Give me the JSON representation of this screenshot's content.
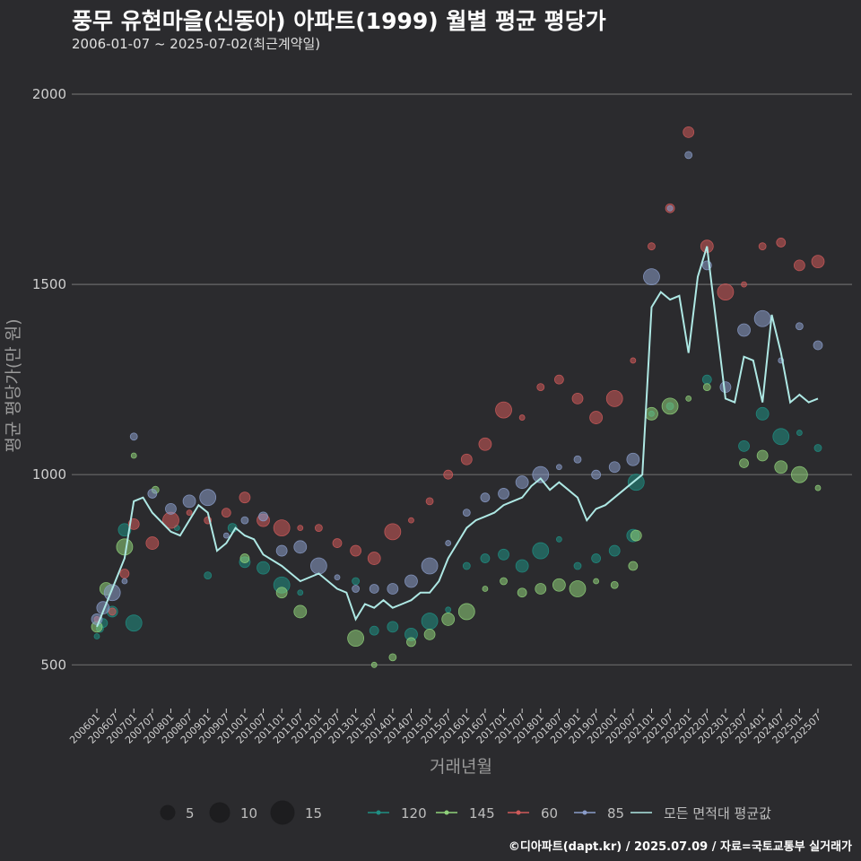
{
  "header": {
    "title": "풍무 유현마을(신동아) 아파트(1999) 월별 평균 평당가",
    "subtitle": "2006-01-07 ~ 2025-07-02(최근계약일)"
  },
  "footer": {
    "credit": "©디아파트(dapt.kr) / 2025.07.09 / 자료=국토교통부 실거래가"
  },
  "chart_data": {
    "type": "scatter",
    "title": "풍무 유현마을(신동아) 아파트(1999) 월별 평균 평당가",
    "subtitle": "2006-01-07 ~ 2025-07-02(최근계약일)",
    "xlabel": "거래년월",
    "ylabel": "평균 평당가(만 원)",
    "ylim": [
      390,
      2040
    ],
    "yticks": [
      500,
      1000,
      1500,
      2000
    ],
    "xticks": [
      "200601",
      "200607",
      "200701",
      "200707",
      "200801",
      "200807",
      "200901",
      "200907",
      "201001",
      "201007",
      "201101",
      "201107",
      "201201",
      "201207",
      "201301",
      "201307",
      "201401",
      "201407",
      "201501",
      "201507",
      "201601",
      "201607",
      "201701",
      "201707",
      "201801",
      "201807",
      "201901",
      "201907",
      "202001",
      "202007",
      "202101",
      "202107",
      "202201",
      "202207",
      "202301",
      "202307",
      "202401",
      "202407",
      "202501",
      "202507"
    ],
    "grid": true,
    "legend_position": "bottom",
    "size_legend": [
      5,
      10,
      15
    ],
    "colors": {
      "120": "#1f8f84",
      "145": "#8fd17a",
      "60": "#cf5a5a",
      "85": "#8a9cc9",
      "avg": "#aee8e4"
    },
    "series": [
      {
        "name": "120",
        "points": [
          [
            "200601",
            575
          ],
          [
            "200602",
            595
          ],
          [
            "200603",
            610
          ],
          [
            "200606",
            640
          ],
          [
            "200610",
            855
          ],
          [
            "200701",
            610
          ],
          [
            "200803",
            860
          ],
          [
            "200901",
            735
          ],
          [
            "200909",
            860
          ],
          [
            "201001",
            770
          ],
          [
            "201007",
            755
          ],
          [
            "201101",
            710
          ],
          [
            "201107",
            690
          ],
          [
            "201301",
            720
          ],
          [
            "201307",
            590
          ],
          [
            "201401",
            600
          ],
          [
            "201407",
            580
          ],
          [
            "201501",
            615
          ],
          [
            "201507",
            645
          ],
          [
            "201601",
            760
          ],
          [
            "201607",
            780
          ],
          [
            "201701",
            790
          ],
          [
            "201707",
            760
          ],
          [
            "201801",
            800
          ],
          [
            "201807",
            830
          ],
          [
            "201901",
            760
          ],
          [
            "201907",
            780
          ],
          [
            "202001",
            800
          ],
          [
            "202007",
            840
          ],
          [
            "202008",
            980
          ],
          [
            "202101",
            1160
          ],
          [
            "202107",
            1180
          ],
          [
            "202207",
            1250
          ],
          [
            "202307",
            1075
          ],
          [
            "202401",
            1160
          ],
          [
            "202407",
            1100
          ],
          [
            "202501",
            1110
          ],
          [
            "202507",
            1070
          ]
        ]
      },
      {
        "name": "145",
        "points": [
          [
            "200601",
            600
          ],
          [
            "200604",
            700
          ],
          [
            "200610",
            810
          ],
          [
            "200701",
            1050
          ],
          [
            "200708",
            960
          ],
          [
            "201001",
            780
          ],
          [
            "201101",
            690
          ],
          [
            "201107",
            640
          ],
          [
            "201301",
            570
          ],
          [
            "201307",
            500
          ],
          [
            "201401",
            520
          ],
          [
            "201407",
            560
          ],
          [
            "201501",
            580
          ],
          [
            "201507",
            620
          ],
          [
            "201601",
            640
          ],
          [
            "201607",
            700
          ],
          [
            "201701",
            720
          ],
          [
            "201707",
            690
          ],
          [
            "201801",
            700
          ],
          [
            "201807",
            710
          ],
          [
            "201901",
            700
          ],
          [
            "201907",
            720
          ],
          [
            "202001",
            710
          ],
          [
            "202007",
            760
          ],
          [
            "202008",
            840
          ],
          [
            "202101",
            1160
          ],
          [
            "202107",
            1180
          ],
          [
            "202201",
            1200
          ],
          [
            "202207",
            1230
          ],
          [
            "202307",
            1030
          ],
          [
            "202401",
            1050
          ],
          [
            "202407",
            1020
          ],
          [
            "202501",
            1000
          ],
          [
            "202507",
            965
          ]
        ]
      },
      {
        "name": "60",
        "points": [
          [
            "200601",
            620
          ],
          [
            "200606",
            640
          ],
          [
            "200610",
            740
          ],
          [
            "200701",
            870
          ],
          [
            "200707",
            820
          ],
          [
            "200801",
            880
          ],
          [
            "200807",
            900
          ],
          [
            "200901",
            880
          ],
          [
            "200907",
            900
          ],
          [
            "201001",
            940
          ],
          [
            "201007",
            880
          ],
          [
            "201101",
            860
          ],
          [
            "201107",
            860
          ],
          [
            "201201",
            860
          ],
          [
            "201207",
            820
          ],
          [
            "201301",
            800
          ],
          [
            "201307",
            780
          ],
          [
            "201401",
            850
          ],
          [
            "201407",
            880
          ],
          [
            "201501",
            930
          ],
          [
            "201507",
            1000
          ],
          [
            "201601",
            1040
          ],
          [
            "201607",
            1080
          ],
          [
            "201701",
            1170
          ],
          [
            "201707",
            1150
          ],
          [
            "201801",
            1230
          ],
          [
            "201807",
            1250
          ],
          [
            "201901",
            1200
          ],
          [
            "201907",
            1150
          ],
          [
            "202001",
            1200
          ],
          [
            "202007",
            1300
          ],
          [
            "202101",
            1600
          ],
          [
            "202107",
            1700
          ],
          [
            "202201",
            1900
          ],
          [
            "202207",
            1600
          ],
          [
            "202301",
            1480
          ],
          [
            "202307",
            1500
          ],
          [
            "202401",
            1600
          ],
          [
            "202407",
            1610
          ],
          [
            "202501",
            1550
          ],
          [
            "202507",
            1560
          ]
        ]
      },
      {
        "name": "85",
        "points": [
          [
            "200601",
            620
          ],
          [
            "200603",
            650
          ],
          [
            "200606",
            690
          ],
          [
            "200610",
            720
          ],
          [
            "200701",
            1100
          ],
          [
            "200707",
            950
          ],
          [
            "200801",
            910
          ],
          [
            "200807",
            930
          ],
          [
            "200901",
            940
          ],
          [
            "200907",
            840
          ],
          [
            "201001",
            880
          ],
          [
            "201007",
            890
          ],
          [
            "201101",
            800
          ],
          [
            "201107",
            810
          ],
          [
            "201201",
            760
          ],
          [
            "201207",
            730
          ],
          [
            "201301",
            700
          ],
          [
            "201307",
            700
          ],
          [
            "201401",
            700
          ],
          [
            "201407",
            720
          ],
          [
            "201501",
            760
          ],
          [
            "201507",
            820
          ],
          [
            "201601",
            900
          ],
          [
            "201607",
            940
          ],
          [
            "201701",
            950
          ],
          [
            "201707",
            980
          ],
          [
            "201801",
            1000
          ],
          [
            "201807",
            1020
          ],
          [
            "201901",
            1040
          ],
          [
            "201907",
            1000
          ],
          [
            "202001",
            1020
          ],
          [
            "202007",
            1040
          ],
          [
            "202101",
            1520
          ],
          [
            "202107",
            1700
          ],
          [
            "202201",
            1840
          ],
          [
            "202207",
            1550
          ],
          [
            "202301",
            1230
          ],
          [
            "202307",
            1380
          ],
          [
            "202401",
            1410
          ],
          [
            "202407",
            1300
          ],
          [
            "202501",
            1390
          ],
          [
            "202507",
            1340
          ]
        ]
      },
      {
        "name": "모든 면적대 평균값",
        "points": [
          [
            "200601",
            600
          ],
          [
            "200603",
            640
          ],
          [
            "200606",
            700
          ],
          [
            "200610",
            780
          ],
          [
            "200701",
            930
          ],
          [
            "200704",
            940
          ],
          [
            "200707",
            900
          ],
          [
            "200801",
            850
          ],
          [
            "200804",
            840
          ],
          [
            "200807",
            880
          ],
          [
            "200810",
            920
          ],
          [
            "200901",
            900
          ],
          [
            "200904",
            800
          ],
          [
            "200907",
            820
          ],
          [
            "200910",
            860
          ],
          [
            "201001",
            840
          ],
          [
            "201004",
            830
          ],
          [
            "201007",
            790
          ],
          [
            "201101",
            760
          ],
          [
            "201104",
            740
          ],
          [
            "201107",
            720
          ],
          [
            "201201",
            740
          ],
          [
            "201204",
            720
          ],
          [
            "201207",
            700
          ],
          [
            "201210",
            690
          ],
          [
            "201301",
            620
          ],
          [
            "201304",
            660
          ],
          [
            "201307",
            650
          ],
          [
            "201310",
            670
          ],
          [
            "201401",
            650
          ],
          [
            "201404",
            660
          ],
          [
            "201407",
            670
          ],
          [
            "201410",
            690
          ],
          [
            "201501",
            690
          ],
          [
            "201504",
            720
          ],
          [
            "201507",
            780
          ],
          [
            "201510",
            820
          ],
          [
            "201601",
            860
          ],
          [
            "201604",
            880
          ],
          [
            "201607",
            890
          ],
          [
            "201610",
            900
          ],
          [
            "201701",
            920
          ],
          [
            "201704",
            930
          ],
          [
            "201707",
            940
          ],
          [
            "201710",
            970
          ],
          [
            "201801",
            990
          ],
          [
            "201804",
            960
          ],
          [
            "201807",
            980
          ],
          [
            "201810",
            960
          ],
          [
            "201901",
            940
          ],
          [
            "201904",
            880
          ],
          [
            "201907",
            910
          ],
          [
            "201910",
            920
          ],
          [
            "202001",
            940
          ],
          [
            "202004",
            960
          ],
          [
            "202007",
            980
          ],
          [
            "202010",
            1000
          ],
          [
            "202101",
            1440
          ],
          [
            "202104",
            1480
          ],
          [
            "202107",
            1460
          ],
          [
            "202110",
            1470
          ],
          [
            "202201",
            1320
          ],
          [
            "202204",
            1520
          ],
          [
            "202207",
            1600
          ],
          [
            "202210",
            1400
          ],
          [
            "202301",
            1200
          ],
          [
            "202304",
            1190
          ],
          [
            "202307",
            1310
          ],
          [
            "202310",
            1300
          ],
          [
            "202401",
            1190
          ],
          [
            "202404",
            1420
          ],
          [
            "202407",
            1320
          ],
          [
            "202410",
            1190
          ],
          [
            "202501",
            1210
          ],
          [
            "202504",
            1190
          ],
          [
            "202507",
            1200
          ]
        ]
      }
    ]
  },
  "legend": {
    "sizes": [
      "5",
      "10",
      "15"
    ],
    "series": [
      "120",
      "145",
      "60",
      "85",
      "모든 면적대 평균값"
    ]
  }
}
